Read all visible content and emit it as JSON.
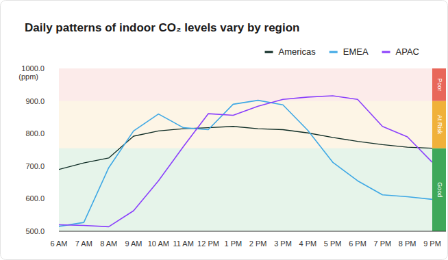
{
  "chart_data": {
    "type": "line",
    "title": "Daily patterns of indoor CO₂ levels vary by region",
    "y_label": "(ppm)",
    "categories": [
      "6 AM",
      "7 AM",
      "8 AM",
      "9 AM",
      "10 AM",
      "11 AM",
      "12 PM",
      "1 PM",
      "2 PM",
      "3 PM",
      "4 PM",
      "5 PM",
      "6 PM",
      "7 PM",
      "8 PM",
      "9 PM"
    ],
    "series": [
      {
        "name": "Americas",
        "color": "#0d2b24",
        "values": [
          690,
          710,
          725,
          792,
          808,
          815,
          818,
          822,
          815,
          812,
          802,
          788,
          776,
          766,
          758,
          755
        ]
      },
      {
        "name": "EMEA",
        "color": "#3ea8e5",
        "values": [
          515,
          527,
          695,
          808,
          860,
          818,
          812,
          890,
          902,
          888,
          810,
          712,
          655,
          612,
          606,
          598
        ]
      },
      {
        "name": "APAC",
        "color": "#8a3ffc",
        "values": [
          520,
          518,
          514,
          563,
          655,
          760,
          861,
          856,
          884,
          905,
          912,
          916,
          905,
          822,
          790,
          712
        ]
      }
    ],
    "bands": [
      {
        "name": "Good",
        "from": 500,
        "to": 755,
        "color": "#3ea85a"
      },
      {
        "name": "At Risk",
        "from": 755,
        "to": 900,
        "color": "#f0b13a"
      },
      {
        "name": "Poor",
        "from": 900,
        "to": 1000,
        "color": "#e8675a"
      }
    ],
    "ylim": [
      500,
      1000
    ],
    "yticks": [
      {
        "value": 500,
        "label": "500.0"
      },
      {
        "value": 600,
        "label": "600.0"
      },
      {
        "value": 700,
        "label": "700.0"
      },
      {
        "value": 800,
        "label": "800.0"
      },
      {
        "value": 900,
        "label": "900.0"
      },
      {
        "value": 1000,
        "label": "1000.0"
      }
    ],
    "grid": false,
    "legend": "top-right"
  }
}
